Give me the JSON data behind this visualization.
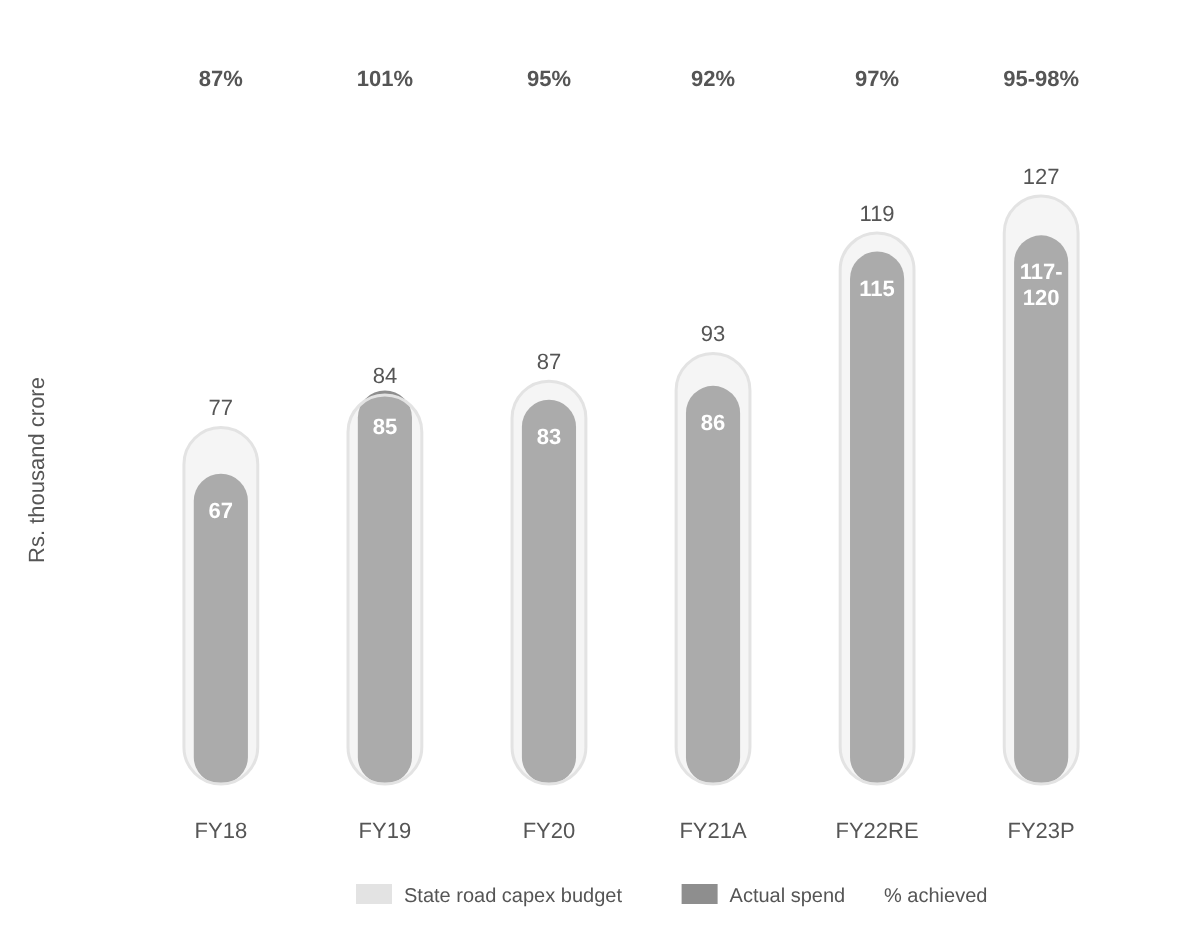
{
  "chart_data": {
    "type": "bar",
    "ylabel": "Rs. thousand crore",
    "categories": [
      "FY18",
      "FY19",
      "FY20",
      "FY21A",
      "FY22RE",
      "FY23P"
    ],
    "series": [
      {
        "name": "State road capex budget",
        "color": "#e3e3e3",
        "values": [
          77,
          84,
          87,
          93,
          119,
          127
        ],
        "value_labels": [
          "77",
          "84",
          "87",
          "93",
          "119",
          "127"
        ]
      },
      {
        "name": "Actual spend",
        "color": "#8e8e8e",
        "values": [
          67,
          85,
          83,
          86,
          115,
          118.5
        ],
        "value_labels": [
          "67",
          "85",
          "83",
          "86",
          "115",
          "117-120"
        ]
      }
    ],
    "annotations": [
      "87%",
      "101%",
      "95%",
      "92%",
      "97%",
      "95-98%",
      "% achieved"
    ],
    "legend": "bottom"
  }
}
